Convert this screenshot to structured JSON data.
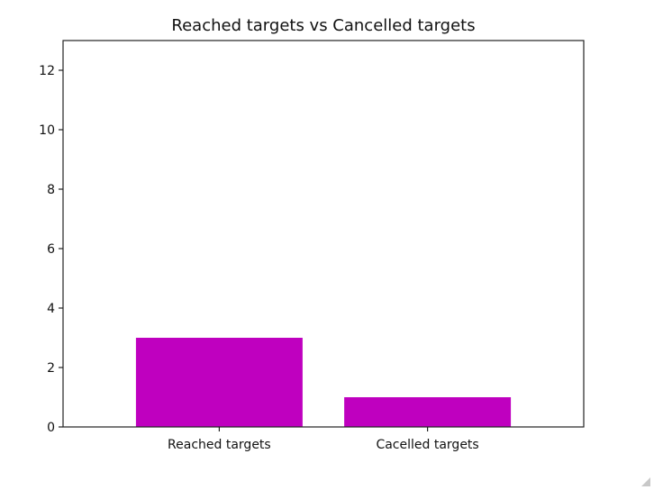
{
  "chart_data": {
    "type": "bar",
    "title": "Reached targets vs Cancelled targets",
    "categories": [
      "Reached targets",
      "Cacelled targets"
    ],
    "values": [
      3,
      1
    ],
    "xlabel": "",
    "ylabel": "",
    "ylim": [
      0,
      13
    ],
    "yticks": [
      0,
      2,
      4,
      6,
      8,
      10,
      12
    ],
    "bar_color": "#bf00bf",
    "grid": false,
    "legend": "none"
  }
}
